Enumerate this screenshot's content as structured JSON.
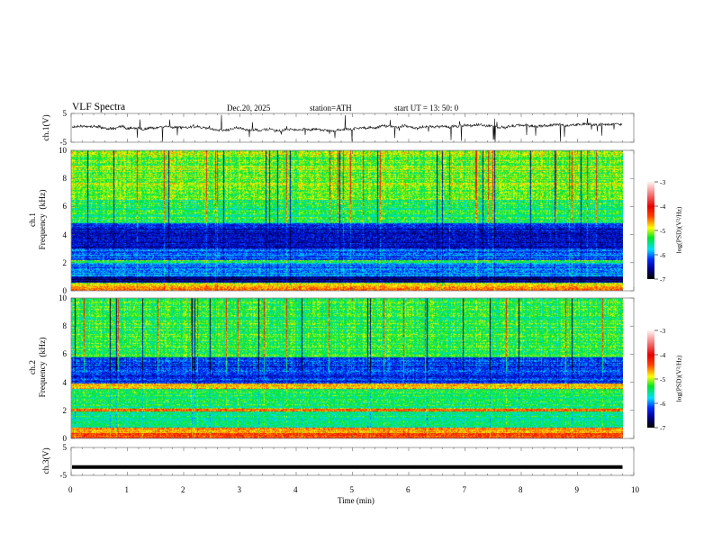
{
  "header": {
    "title": "VLF  Spectra",
    "date": "Dec.20, 2025",
    "station": "station=ATH",
    "start": "start  UT  =   13: 50: 0"
  },
  "chart_data": [
    {
      "type": "line",
      "name": "ch1-waveform",
      "ylabel": "ch.1(V)",
      "ylim": [
        -5,
        5
      ],
      "yticks": [
        "5",
        "-5"
      ],
      "xlim": [
        0,
        10
      ],
      "baseline_v": 0.3,
      "spike_amplitude_v": 5,
      "data_end_min": 9.8
    },
    {
      "type": "heatmap",
      "name": "ch1-spectrogram",
      "ylabel": "ch.1\nFrequency  (kHz)",
      "ylim": [
        0,
        10
      ],
      "yticks": [
        "0",
        "2",
        "4",
        "6",
        "8",
        "10"
      ],
      "xlim": [
        0,
        10
      ],
      "data_end_min": 9.8,
      "bands_khz_logpsd": [
        [
          0,
          0.3,
          -4.6
        ],
        [
          0.3,
          0.6,
          -4.9
        ],
        [
          0.6,
          1.0,
          -6.6
        ],
        [
          1.0,
          2.0,
          -6.0
        ],
        [
          2.0,
          2.2,
          -5.3
        ],
        [
          2.2,
          3.0,
          -6.1
        ],
        [
          3.0,
          4.8,
          -6.4
        ],
        [
          4.8,
          6.5,
          -5.4
        ],
        [
          6.5,
          10,
          -5.1
        ]
      ],
      "colorbar": {
        "label": "log(PSD)(V²/Hz)",
        "range": [
          -7,
          -3
        ],
        "ticks": [
          "-3",
          "-4",
          "-5",
          "-6",
          "-7"
        ]
      }
    },
    {
      "type": "heatmap",
      "name": "ch2-spectrogram",
      "ylabel": "ch.2\nFrequency  (kHz)",
      "ylim": [
        0,
        10
      ],
      "yticks": [
        "0",
        "2",
        "4",
        "6",
        "8",
        "10"
      ],
      "xlim": [
        0,
        10
      ],
      "data_end_min": 9.8,
      "bands_khz_logpsd": [
        [
          0,
          0.4,
          -4.3
        ],
        [
          0.4,
          0.8,
          -4.6
        ],
        [
          0.8,
          1.9,
          -5.5
        ],
        [
          1.9,
          2.1,
          -4.5
        ],
        [
          2.1,
          3.5,
          -5.4
        ],
        [
          3.5,
          3.9,
          -4.8
        ],
        [
          3.9,
          5.8,
          -6.2
        ],
        [
          5.8,
          10,
          -5.3
        ]
      ],
      "colorbar": {
        "label": "log(PSD)(V²/Hz)",
        "range": [
          -7,
          -3
        ],
        "ticks": [
          "-3",
          "-4",
          "-5",
          "-6",
          "-7"
        ]
      }
    },
    {
      "type": "line",
      "name": "ch3-waveform",
      "ylabel": "ch.3(V)",
      "ylim": [
        -5,
        5
      ],
      "yticks": [
        "5",
        "-5"
      ],
      "xlim": [
        0,
        10
      ],
      "baseline_v": -2,
      "data_end_min": 9.8
    }
  ],
  "xaxis": {
    "label": "Time  (min)",
    "ticks": [
      "0",
      "1",
      "2",
      "3",
      "4",
      "5",
      "6",
      "7",
      "8",
      "9",
      "10"
    ]
  }
}
